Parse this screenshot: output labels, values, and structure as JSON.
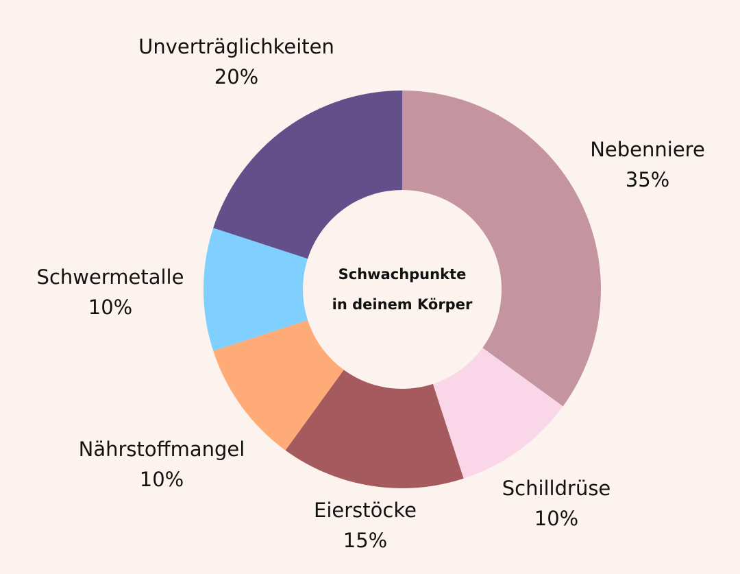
{
  "chart_data": {
    "type": "pie",
    "center_title": [
      "Schwachpunkte",
      "in deinem Körper"
    ],
    "slices": [
      {
        "label": "Nebenniere",
        "value": 35,
        "value_label": "35%",
        "color": "#c495a0"
      },
      {
        "label": "Schilldrüse",
        "value": 10,
        "value_label": "10%",
        "color": "#f9d6e8"
      },
      {
        "label": "Eierstöcke",
        "value": 15,
        "value_label": "15%",
        "color": "#a55b5e"
      },
      {
        "label": "Nährstoffmangel",
        "value": 10,
        "value_label": "10%",
        "color": "#ffab78"
      },
      {
        "label": "Schwermetalle",
        "value": 10,
        "value_label": "10%",
        "color": "#7fcfff"
      },
      {
        "label": "Unverträglichkeiten",
        "value": 20,
        "value_label": "20%",
        "color": "#634f8a"
      }
    ],
    "background": "#fdf3ee",
    "legend": "none"
  }
}
